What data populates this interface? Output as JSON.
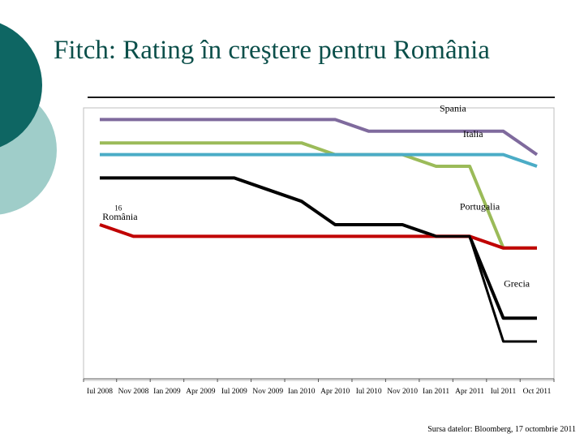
{
  "slide": {
    "title": "Fitch: Rating în creştere pentru România",
    "source": "Sursa datelor: Bloomberg, 17 octombrie 2011"
  },
  "colors": {
    "title": "#0b4f4a",
    "deco_dark": "#0e6663",
    "deco_light": "#9fcdc9",
    "frame": "#bfbfbf"
  },
  "chart_data": {
    "type": "line",
    "title": "",
    "xlabel": "",
    "ylabel": "",
    "grid": false,
    "x": [
      "Iul 2008",
      "Nov 2008",
      "Ian 2009",
      "Apr 2009",
      "Iul 2009",
      "Nov 2009",
      "Ian 2010",
      "Apr 2010",
      "Iul 2010",
      "Nov 2010",
      "Ian 2011",
      "Apr 2011",
      "Iul 2011",
      "Oct 2011"
    ],
    "ylim": [
      0,
      25
    ],
    "series": [
      {
        "name": "Spania",
        "color": "#7f6a9d",
        "values": [
          1,
          1,
          1,
          1,
          1,
          1,
          1,
          1,
          2,
          2,
          2,
          2,
          2,
          4
        ]
      },
      {
        "name": "Italia",
        "color": "#9bbb59",
        "values": [
          3,
          3,
          3,
          3,
          3,
          3,
          3,
          4,
          4,
          4,
          5,
          5,
          12,
          12
        ]
      },
      {
        "name": "",
        "color": "#4bacc6",
        "values": [
          4,
          4,
          4,
          4,
          4,
          4,
          4,
          4,
          4,
          4,
          4,
          4,
          4,
          5
        ]
      },
      {
        "name": "Portugalia",
        "color": "#000000",
        "values": [
          6,
          6,
          6,
          6,
          6,
          7,
          8,
          10,
          10,
          10,
          11,
          11,
          18,
          18
        ]
      },
      {
        "name": "România",
        "color": "#c00000",
        "values": [
          10,
          11,
          11,
          11,
          11,
          11,
          11,
          11,
          11,
          11,
          11,
          11,
          12,
          12
        ]
      }
    ],
    "annotations": [
      {
        "text": "Spania",
        "x": 10.5,
        "y": 0.3
      },
      {
        "text": "Italia",
        "x": 11.1,
        "y": 2.5
      },
      {
        "text": "Portugalia",
        "x": 11.3,
        "y": 8.7
      },
      {
        "text": "România",
        "x": 0.6,
        "y": 9.6
      },
      {
        "text": "Grecia",
        "x": 12.4,
        "y": 15.3
      },
      {
        "text": "16",
        "x": 0.55,
        "y": 8.8
      }
    ]
  }
}
